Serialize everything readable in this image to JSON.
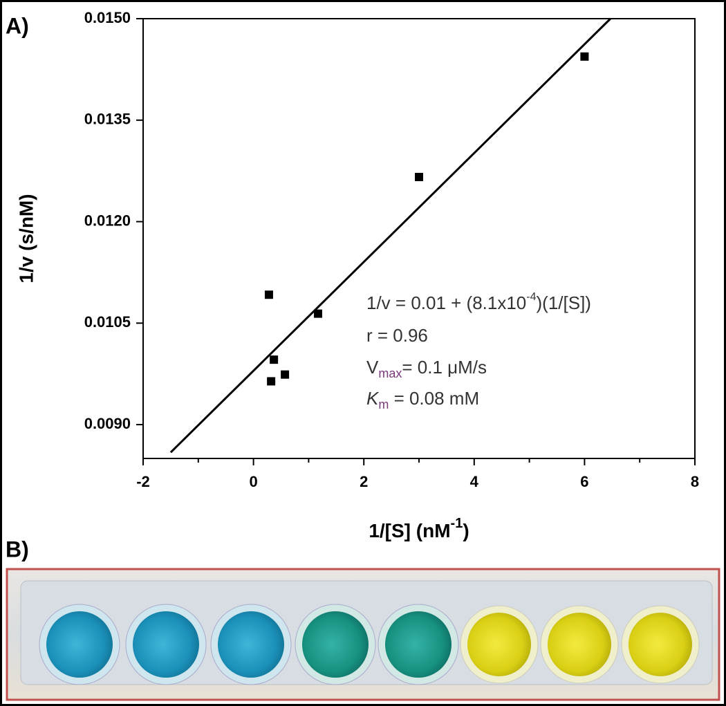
{
  "chart_data": {
    "type": "scatter",
    "panel_label": "A)",
    "x_label": {
      "text": "1/[S] (nM",
      "sup": "-1",
      "end": ")"
    },
    "y_label": "1/v (s/nM)",
    "x": [
      6.0,
      3.0,
      0.28,
      1.17,
      0.37,
      0.57,
      0.32
    ],
    "values": [
      0.01444,
      0.01266,
      0.01092,
      0.01064,
      0.00996,
      0.00974,
      0.00964
    ],
    "color": "#000000",
    "fit_line": {
      "x": [
        -1.5,
        6.47
      ],
      "y": [
        0.00859,
        0.015
      ],
      "color": "#000000"
    },
    "xlim": [
      -2,
      8
    ],
    "xticks": [
      -2,
      0,
      2,
      4,
      6,
      8
    ],
    "xminorticks": [
      -1,
      1,
      3,
      5,
      7
    ],
    "ylim": [
      0.0085,
      0.015
    ],
    "yticks": [
      {
        "value": 0.009,
        "label": "0.0090"
      },
      0.0105,
      {
        "value": 0.012,
        "label": "0.0120"
      },
      0.0135,
      {
        "value": 0.015,
        "label": "0.0150"
      }
    ],
    "annotations": {
      "equation": [
        "1/v = 0.01 + (8.1x10",
        "-4",
        ")(1/[S])"
      ],
      "r": "r = 0.96",
      "vmax": [
        "V",
        "max",
        "= 0.1 μM/s"
      ],
      "km": [
        "K",
        "m",
        " = 0.08 mM"
      ]
    }
  },
  "photo": {
    "panel_label": "B)"
  }
}
